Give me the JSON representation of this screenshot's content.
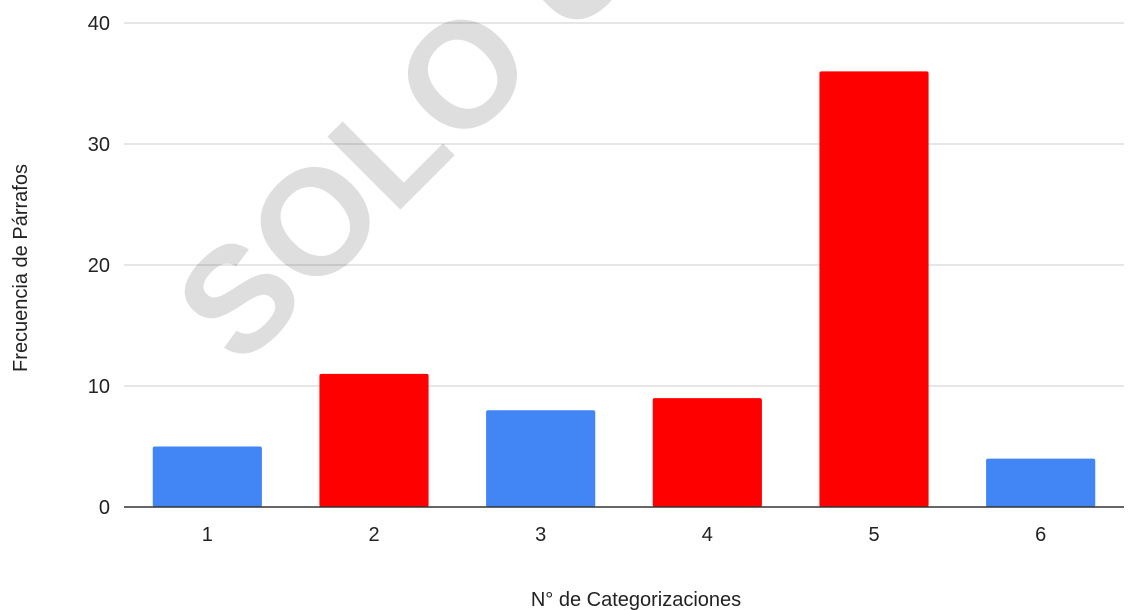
{
  "chart_data": {
    "type": "bar",
    "categories": [
      "1",
      "2",
      "3",
      "4",
      "5",
      "6"
    ],
    "values": [
      5,
      11,
      8,
      9,
      36,
      4
    ],
    "bar_colors": [
      "#4285f4",
      "#ff0000",
      "#4285f4",
      "#ff0000",
      "#ff0000",
      "#4285f4"
    ],
    "xlabel": "N° de Categorizaciones",
    "ylabel": "Frecuencia de Párrafos",
    "ylim": [
      0,
      40
    ],
    "yticks": [
      0,
      10,
      20,
      30,
      40
    ],
    "grid": true,
    "gridline_color": "#cccccc",
    "axis_color": "#333333"
  },
  "watermark": "SOLO USO"
}
